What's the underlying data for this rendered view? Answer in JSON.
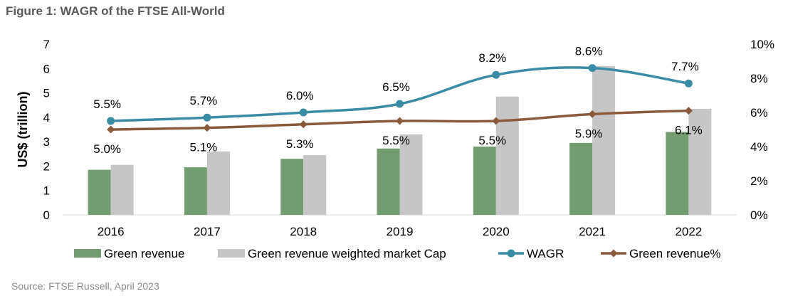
{
  "figure": {
    "title": "Figure 1: WAGR of the FTSE All-World",
    "source": "Source: FTSE Russell, April 2023"
  },
  "chart_data": {
    "type": "bar",
    "categories": [
      "2016",
      "2017",
      "2018",
      "2019",
      "2020",
      "2021",
      "2022"
    ],
    "ylabel": "US$ (trillion)",
    "ylim": [
      0,
      7
    ],
    "y_ticks": [
      "0",
      "1",
      "2",
      "3",
      "4",
      "5",
      "6",
      "7"
    ],
    "y2lim": [
      0,
      10
    ],
    "y2_ticks": [
      "0%",
      "2%",
      "4%",
      "6%",
      "8%",
      "10%"
    ],
    "legend_position": "bottom",
    "grid": false,
    "series": [
      {
        "name": "Green revenue",
        "kind": "bar",
        "axis": "left",
        "color": "#739c72",
        "values": [
          1.85,
          1.95,
          2.3,
          2.72,
          2.8,
          2.95,
          3.4
        ]
      },
      {
        "name": "Green revenue weighted market Cap",
        "kind": "bar",
        "axis": "left",
        "color": "#c6c6c6",
        "values": [
          2.05,
          2.6,
          2.45,
          3.3,
          4.85,
          6.1,
          4.35
        ]
      },
      {
        "name": "WAGR",
        "kind": "line",
        "axis": "right",
        "color": "#3a8ca5",
        "values": [
          5.5,
          5.7,
          6.0,
          6.5,
          8.2,
          8.6,
          7.7
        ],
        "labels": [
          "5.5%",
          "5.7%",
          "6.0%",
          "6.5%",
          "8.2%",
          "8.6%",
          "7.7%"
        ]
      },
      {
        "name": "Green revenue%",
        "kind": "line",
        "axis": "right",
        "color": "#8a5a3c",
        "values": [
          5.0,
          5.1,
          5.3,
          5.5,
          5.5,
          5.9,
          6.1
        ],
        "labels": [
          "5.0%",
          "5.1%",
          "5.3%",
          "5.5%",
          "5.5%",
          "5.9%",
          "6.1%"
        ]
      }
    ]
  }
}
